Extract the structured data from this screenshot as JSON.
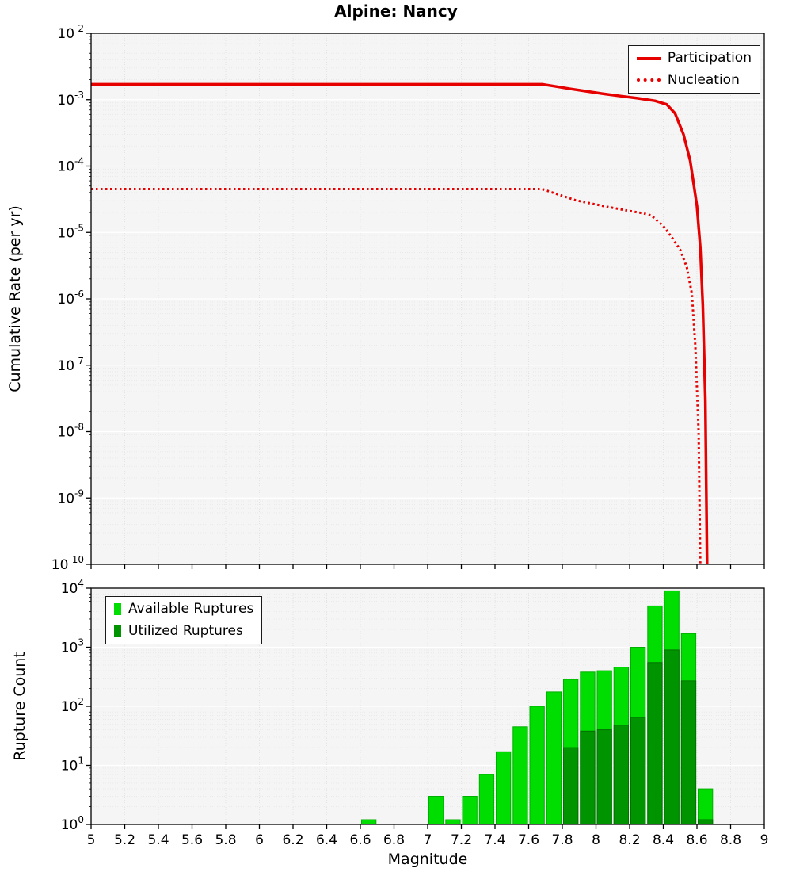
{
  "figure": {
    "title": "Alpine: Nancy"
  },
  "chart_data": [
    {
      "type": "line",
      "title": "Alpine: Nancy",
      "xlabel": "",
      "ylabel": "Cumulative Rate (per yr)",
      "xlim": [
        5,
        9
      ],
      "ylim_exp": [
        -10,
        -2
      ],
      "grid": true,
      "legend_position": "top-right",
      "series": [
        {
          "name": "Participation",
          "color": "#e60000",
          "dash": "solid",
          "width": 3.5,
          "points": [
            [
              5.0,
              0.0017
            ],
            [
              7.68,
              0.0017
            ],
            [
              7.75,
              0.0016
            ],
            [
              7.85,
              0.00145
            ],
            [
              7.95,
              0.00133
            ],
            [
              8.05,
              0.00122
            ],
            [
              8.15,
              0.00113
            ],
            [
              8.25,
              0.00105
            ],
            [
              8.35,
              0.00096
            ],
            [
              8.42,
              0.00085
            ],
            [
              8.47,
              0.00062
            ],
            [
              8.52,
              0.0003
            ],
            [
              8.56,
              0.00012
            ],
            [
              8.6,
              2.5e-05
            ],
            [
              8.62,
              6e-06
            ],
            [
              8.635,
              8e-07
            ],
            [
              8.65,
              3e-08
            ],
            [
              8.66,
              1e-10
            ]
          ]
        },
        {
          "name": "Nucleation",
          "color": "#e60000",
          "dash": "dotted",
          "width": 3,
          "points": [
            [
              5.0,
              4.5e-05
            ],
            [
              7.68,
              4.5e-05
            ],
            [
              7.78,
              3.7e-05
            ],
            [
              7.88,
              3.05e-05
            ],
            [
              7.98,
              2.7e-05
            ],
            [
              8.08,
              2.4e-05
            ],
            [
              8.18,
              2.15e-05
            ],
            [
              8.28,
              1.95e-05
            ],
            [
              8.33,
              1.8e-05
            ],
            [
              8.4,
              1.25e-05
            ],
            [
              8.45,
              8.5e-06
            ],
            [
              8.5,
              5.5e-06
            ],
            [
              8.54,
              3e-06
            ],
            [
              8.57,
              1.2e-06
            ],
            [
              8.59,
              2e-07
            ],
            [
              8.61,
              1e-08
            ],
            [
              8.62,
              1e-10
            ]
          ]
        }
      ]
    },
    {
      "type": "bar",
      "xlabel": "Magnitude",
      "ylabel": "Rupture Count",
      "xlim": [
        5,
        9
      ],
      "ylim_exp": [
        0,
        4
      ],
      "bin_width": 0.1,
      "xticks": [
        "5",
        "5.2",
        "5.4",
        "5.6",
        "5.8",
        "6",
        "6.2",
        "6.4",
        "6.6",
        "6.8",
        "7",
        "7.2",
        "7.4",
        "7.6",
        "7.8",
        "8",
        "8.2",
        "8.4",
        "8.6",
        "8.8",
        "9"
      ],
      "legend_position": "top-left",
      "series": [
        {
          "name": "Available Ruptures",
          "color": "#00dd00",
          "edge": "#00b000"
        },
        {
          "name": "Utilized Ruptures",
          "color": "#009400",
          "edge": "#007000"
        }
      ],
      "bars": [
        {
          "m": 6.6,
          "available": 1,
          "utilized": 0
        },
        {
          "m": 7.0,
          "available": 3,
          "utilized": 0
        },
        {
          "m": 7.1,
          "available": 1,
          "utilized": 0
        },
        {
          "m": 7.2,
          "available": 3,
          "utilized": 0
        },
        {
          "m": 7.3,
          "available": 7,
          "utilized": 0
        },
        {
          "m": 7.4,
          "available": 17,
          "utilized": 0
        },
        {
          "m": 7.5,
          "available": 45,
          "utilized": 0
        },
        {
          "m": 7.6,
          "available": 100,
          "utilized": 0
        },
        {
          "m": 7.7,
          "available": 175,
          "utilized": 0
        },
        {
          "m": 7.8,
          "available": 285,
          "utilized": 20
        },
        {
          "m": 7.9,
          "available": 380,
          "utilized": 38
        },
        {
          "m": 8.0,
          "available": 400,
          "utilized": 40
        },
        {
          "m": 8.1,
          "available": 460,
          "utilized": 48
        },
        {
          "m": 8.2,
          "available": 1000,
          "utilized": 65
        },
        {
          "m": 8.3,
          "available": 5000,
          "utilized": 550
        },
        {
          "m": 8.4,
          "available": 9000,
          "utilized": 900
        },
        {
          "m": 8.5,
          "available": 1700,
          "utilized": 270
        },
        {
          "m": 8.6,
          "available": 4,
          "utilized": 1
        }
      ]
    }
  ]
}
